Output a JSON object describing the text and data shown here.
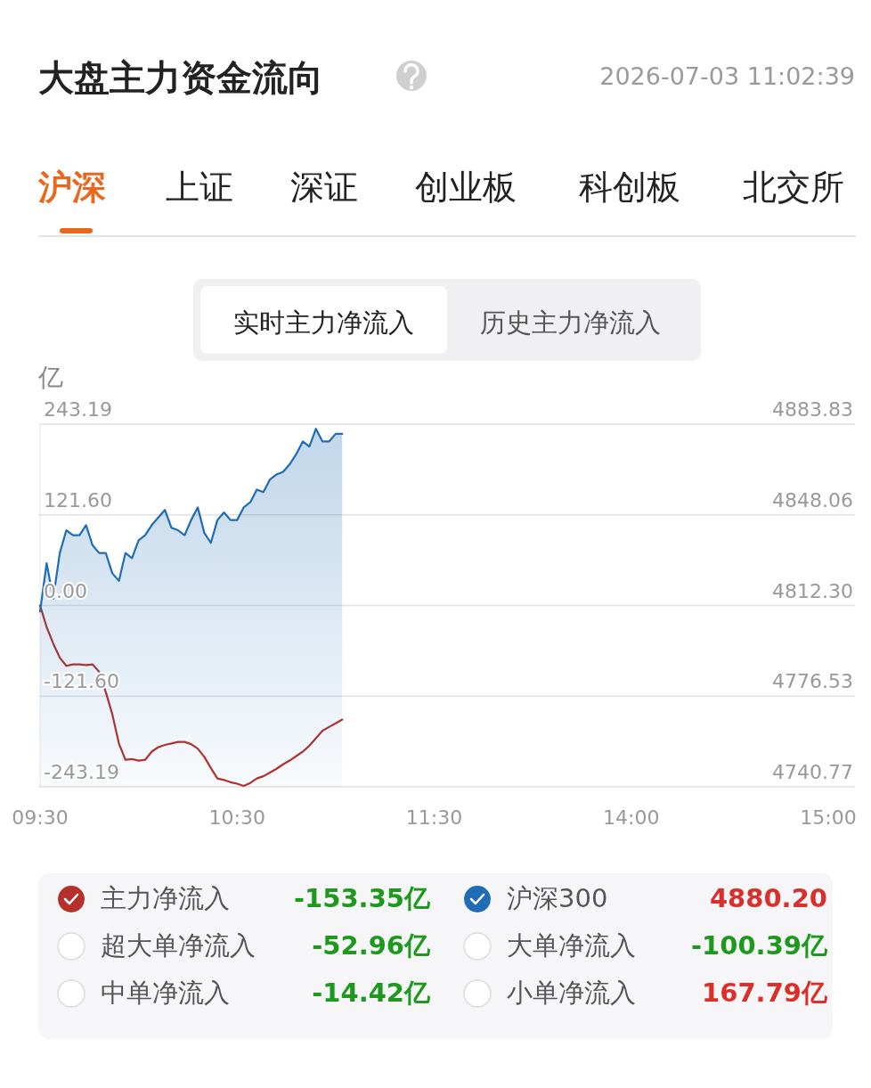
{
  "chart_data": {
    "type": "line",
    "title": "大盘主力资金流向",
    "ylabel": "亿",
    "categories": [
      "09:30",
      null,
      null,
      null,
      null,
      null,
      null,
      null,
      null,
      null,
      null,
      null,
      null,
      null,
      null,
      null,
      null,
      null,
      null,
      null,
      null,
      null,
      null,
      null,
      null,
      null,
      null,
      null,
      null,
      null,
      "10:30",
      null,
      null,
      null,
      null,
      null,
      null,
      null,
      null,
      null,
      null,
      null,
      null,
      null,
      null,
      null,
      null,
      null,
      null,
      null,
      null,
      null,
      null,
      null,
      null,
      null,
      null,
      null,
      null,
      null,
      "11:30",
      null,
      null,
      null,
      null,
      null,
      null,
      null,
      null,
      null,
      null,
      null,
      null,
      null,
      null,
      null,
      null,
      null,
      null,
      null,
      null,
      null,
      null,
      null,
      null,
      null,
      null,
      null,
      null,
      null,
      "14:00",
      null,
      null,
      null,
      null,
      null,
      null,
      null,
      null,
      null,
      null,
      null,
      null,
      null,
      null,
      null,
      null,
      null,
      null,
      null,
      null,
      null,
      null,
      null,
      null,
      null,
      null,
      null,
      null,
      null,
      "15:00"
    ],
    "ylim": [
      -243.19,
      243.19
    ],
    "yticks": [
      243.19,
      {
        "value": 121.6,
        "label": "121.60"
      },
      {
        "value": 0,
        "label": "0.00"
      },
      {
        "value": -121.6,
        "label": "-121.60"
      },
      -243.19
    ],
    "y2lim": [
      4740.77,
      4883.83
    ],
    "y2ticks": [
      4883.83,
      4848.06,
      {
        "value": 4812.3,
        "label": "4812.30"
      },
      4776.53,
      4740.77
    ],
    "grid": "y",
    "legend": "bottom",
    "line_style": "solid",
    "marker": "none",
    "series": [
      {
        "name": "主力净流入",
        "color": "#b5302a",
        "values": [
          0,
          -29,
          -51,
          -70,
          -81,
          -79,
          -79,
          -80,
          -79,
          -89,
          -116,
          -146,
          -185,
          -207,
          -206,
          -208,
          -207,
          -196,
          -190,
          -187,
          -185,
          -183,
          -183,
          -186,
          -192,
          -203,
          -218,
          -232,
          -234,
          -237,
          -239,
          -242,
          -238,
          -232,
          -229,
          -224,
          -219,
          -213,
          -208,
          -202,
          -196,
          -188,
          -178,
          -168,
          -163,
          -158,
          -153,
          null,
          null,
          null,
          null,
          null,
          null,
          null,
          null,
          null,
          null,
          null,
          null,
          null,
          null,
          null,
          null,
          null,
          null,
          null,
          null,
          null,
          null,
          null,
          null,
          null,
          null,
          null,
          null,
          null,
          null,
          null,
          null,
          null,
          null,
          null,
          null,
          null,
          null,
          null,
          null,
          null,
          null,
          null,
          null,
          null,
          null,
          null,
          null,
          null,
          null,
          null,
          null,
          null,
          null,
          null,
          null,
          null,
          null,
          null,
          null,
          null,
          null,
          null,
          null,
          null,
          null,
          null,
          null,
          null,
          null,
          null,
          null,
          null,
          null
        ]
      },
      {
        "name": "沪深300",
        "type": "area",
        "axis": "y2",
        "color": "#1f6db4",
        "values": [
          4810,
          4829,
          4815,
          4833,
          4842,
          4840,
          4840,
          4844,
          4836,
          4833,
          4833,
          4825,
          4822,
          4833,
          4831,
          4838,
          4840,
          4844,
          4847,
          4850,
          4843,
          4842,
          4840,
          4846,
          4851,
          4841,
          4837,
          4846,
          4849,
          4846,
          4846,
          4851,
          4853,
          4858,
          4857,
          4862,
          4864,
          4865,
          4868,
          4872,
          4877,
          4875,
          4882,
          4877,
          4877,
          4880,
          4880,
          null,
          null,
          null,
          null,
          null,
          null,
          null,
          null,
          null,
          null,
          null,
          null,
          null,
          null,
          null,
          null,
          null,
          null,
          null,
          null,
          null,
          null,
          null,
          null,
          null,
          null,
          null,
          null,
          null,
          null,
          null,
          null,
          null,
          null,
          null,
          null,
          null,
          null,
          null,
          null,
          null,
          null,
          null,
          null,
          null,
          null,
          null,
          null,
          null,
          null,
          null,
          null,
          null,
          null,
          null,
          null,
          null,
          null,
          null,
          null,
          null,
          null,
          null,
          null,
          null,
          null,
          null,
          null,
          null,
          null,
          null,
          null,
          null,
          null
        ]
      }
    ],
    "annotations": [
      "2026-07-03 11:02:39",
      "沪深",
      "上证",
      "深证",
      "创业板",
      "科创板",
      "北交所",
      "实时主力净流入",
      "历史主力净流入",
      "-153.35亿",
      "4880.20",
      "超大单净流入",
      "-52.96亿",
      "大单净流入",
      "-100.39亿",
      "中单净流入",
      "-14.42亿",
      "小单净流入",
      "167.79亿"
    ]
  }
}
